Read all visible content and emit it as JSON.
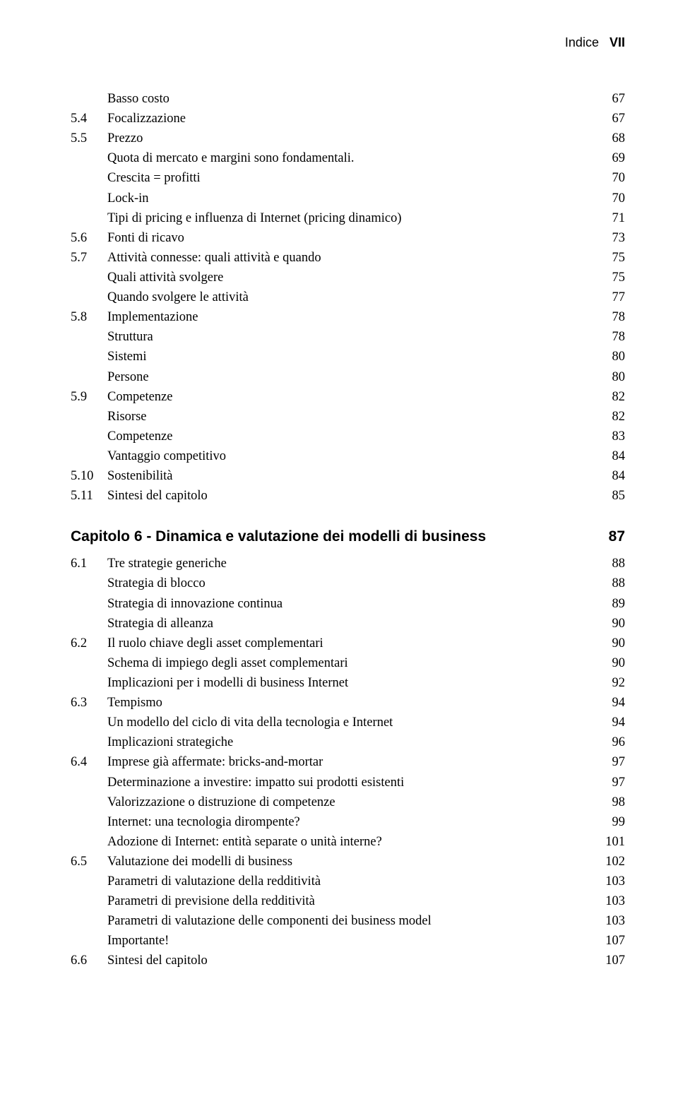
{
  "header": {
    "label": "Indice",
    "page_roman": "VII"
  },
  "block1": [
    {
      "type": "sub",
      "text": "Basso costo",
      "page": "67"
    },
    {
      "type": "entry",
      "num": "5.4",
      "text": "Focalizzazione",
      "page": "67"
    },
    {
      "type": "entry",
      "num": "5.5",
      "text": "Prezzo",
      "page": "68"
    },
    {
      "type": "sub",
      "text": "Quota di mercato e margini sono fondamentali.",
      "page": "69"
    },
    {
      "type": "sub",
      "text": "Crescita = profitti",
      "page": "70"
    },
    {
      "type": "sub",
      "text": "Lock-in",
      "page": "70"
    },
    {
      "type": "sub",
      "text": "Tipi di pricing e influenza di Internet (pricing dinamico)",
      "page": "71"
    },
    {
      "type": "entry",
      "num": "5.6",
      "text": "Fonti di ricavo",
      "page": "73"
    },
    {
      "type": "entry",
      "num": "5.7",
      "text": "Attività connesse: quali attività e quando",
      "page": "75"
    },
    {
      "type": "sub",
      "text": "Quali attività svolgere",
      "page": "75"
    },
    {
      "type": "sub",
      "text": "Quando svolgere le attività",
      "page": "77"
    },
    {
      "type": "entry",
      "num": "5.8",
      "text": "Implementazione",
      "page": "78"
    },
    {
      "type": "sub",
      "text": "Struttura",
      "page": "78"
    },
    {
      "type": "sub",
      "text": "Sistemi",
      "page": "80"
    },
    {
      "type": "sub",
      "text": "Persone",
      "page": "80"
    },
    {
      "type": "entry",
      "num": "5.9",
      "text": "Competenze",
      "page": "82"
    },
    {
      "type": "sub",
      "text": "Risorse",
      "page": "82"
    },
    {
      "type": "sub",
      "text": "Competenze",
      "page": "83"
    },
    {
      "type": "sub",
      "text": "Vantaggio competitivo",
      "page": "84"
    },
    {
      "type": "entry",
      "num": "5.10",
      "text": "Sostenibilità",
      "page": "84"
    },
    {
      "type": "entry",
      "num": "5.11",
      "text": "Sintesi del capitolo",
      "page": "85"
    }
  ],
  "chapter6": {
    "title": "Capitolo 6 - Dinamica e valutazione dei modelli di business",
    "page": "87"
  },
  "block2": [
    {
      "type": "entry",
      "num": "6.1",
      "text": "Tre strategie generiche",
      "page": "88"
    },
    {
      "type": "sub",
      "text": "Strategia di blocco",
      "page": "88"
    },
    {
      "type": "sub",
      "text": "Strategia di innovazione continua",
      "page": "89"
    },
    {
      "type": "sub",
      "text": "Strategia di alleanza",
      "page": "90"
    },
    {
      "type": "entry",
      "num": "6.2",
      "text": "Il ruolo chiave degli asset complementari",
      "page": "90"
    },
    {
      "type": "sub",
      "text": "Schema di impiego degli asset complementari",
      "page": "90"
    },
    {
      "type": "sub",
      "text": "Implicazioni per i modelli di business Internet",
      "page": "92"
    },
    {
      "type": "entry",
      "num": "6.3",
      "text": "Tempismo",
      "page": "94"
    },
    {
      "type": "sub",
      "text": "Un modello del ciclo di vita della tecnologia e Internet",
      "page": "94"
    },
    {
      "type": "sub",
      "text": "Implicazioni strategiche",
      "page": "96"
    },
    {
      "type": "entry",
      "num": "6.4",
      "text": "Imprese già affermate: bricks-and-mortar",
      "page": "97"
    },
    {
      "type": "sub",
      "text": "Determinazione a investire: impatto sui prodotti esistenti",
      "page": "97"
    },
    {
      "type": "sub",
      "text": "Valorizzazione o distruzione di competenze",
      "page": "98"
    },
    {
      "type": "sub",
      "text": "Internet: una tecnologia dirompente?",
      "page": "99"
    },
    {
      "type": "sub",
      "text": "Adozione di Internet: entità separate o unità interne?",
      "page": "101"
    },
    {
      "type": "entry",
      "num": "6.5",
      "text": "Valutazione dei modelli di business",
      "page": "102"
    },
    {
      "type": "sub",
      "text": "Parametri di valutazione della redditività",
      "page": "103"
    },
    {
      "type": "sub",
      "text": "Parametri di previsione della redditività",
      "page": "103"
    },
    {
      "type": "sub",
      "text": "Parametri di valutazione delle componenti dei business model",
      "page": "103"
    },
    {
      "type": "sub",
      "text": "Importante!",
      "page": "107"
    },
    {
      "type": "entry",
      "num": "6.6",
      "text": "Sintesi del capitolo",
      "page": "107"
    }
  ]
}
